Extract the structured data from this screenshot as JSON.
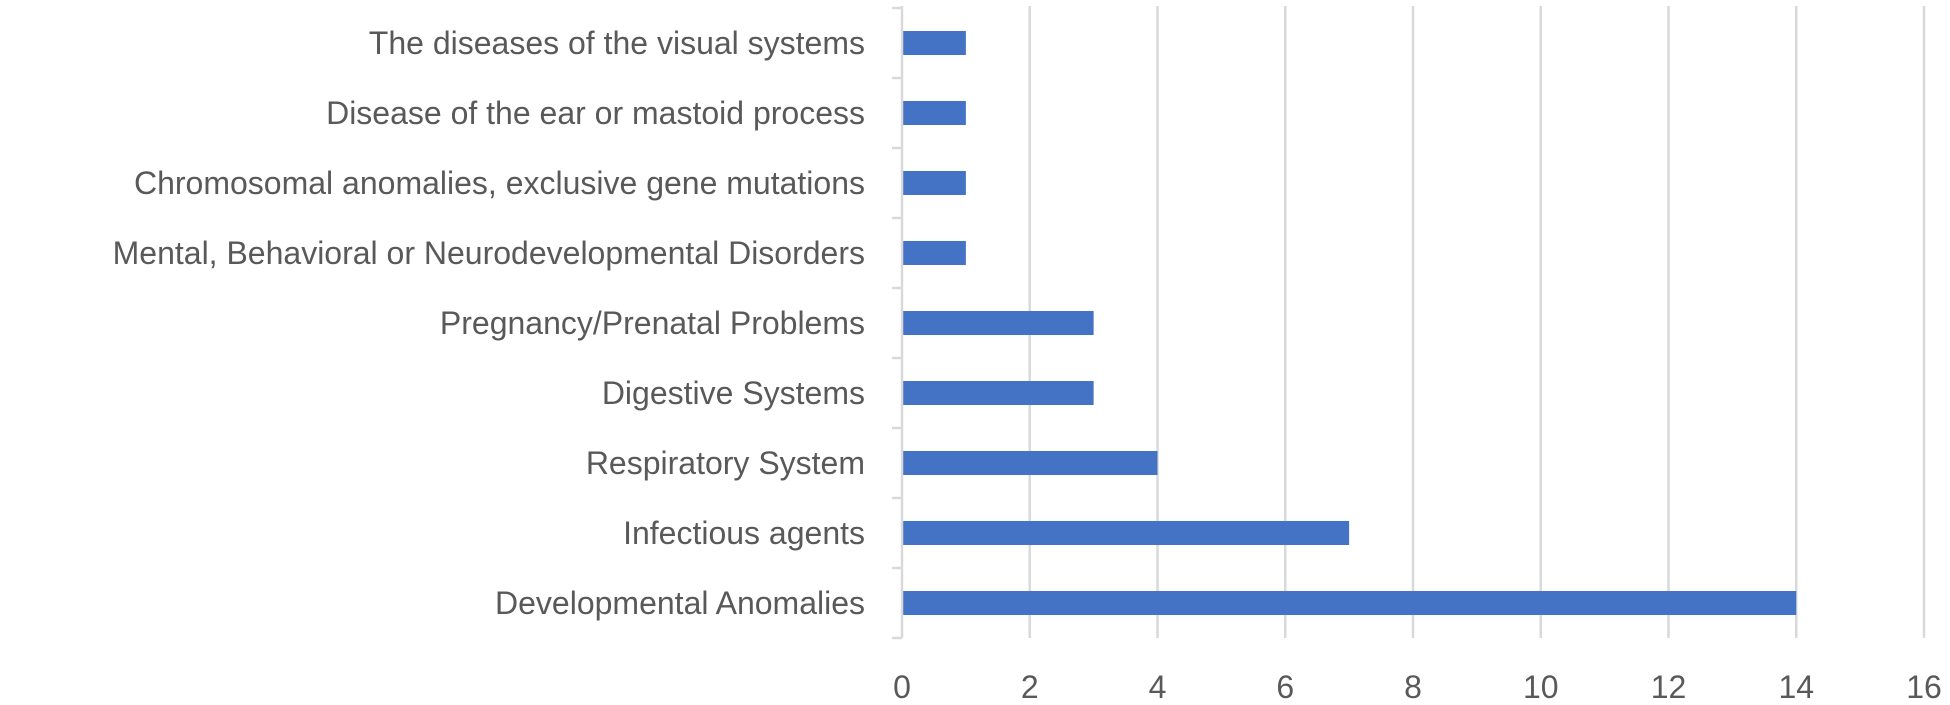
{
  "chart_data": {
    "type": "bar",
    "orientation": "horizontal",
    "title": "",
    "xlabel": "",
    "ylabel": "",
    "categories": [
      "The diseases of the visual systems",
      "Disease of the ear or mastoid process",
      "Chromosomal anomalies, exclusive gene mutations",
      "Mental, Behavioral or Neurodevelopmental Disorders",
      "Pregnancy/Prenatal Problems",
      "Digestive Systems",
      "Respiratory System",
      "Infectious agents",
      "Developmental Anomalies"
    ],
    "values": [
      1,
      1,
      1,
      1,
      3,
      3,
      4,
      7,
      14
    ],
    "xlim": [
      0,
      16
    ],
    "xticks": [
      "0",
      "2",
      "4",
      "6",
      "8",
      "10",
      "12",
      "14",
      "16"
    ],
    "grid": true,
    "legend": "none",
    "bar_color": "#4472c4"
  }
}
